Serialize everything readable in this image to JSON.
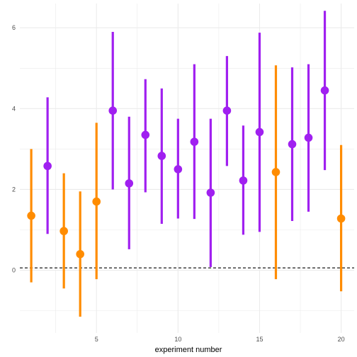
{
  "chart_data": {
    "type": "scatter",
    "subtype": "pointrange",
    "title": "",
    "xlabel": "experiment number",
    "ylabel": "",
    "xlim": [
      0.3,
      20.8
    ],
    "ylim": [
      -1.55,
      6.6
    ],
    "x_ticks": [
      5,
      10,
      15,
      20
    ],
    "y_ticks": [
      0,
      2,
      4,
      6
    ],
    "grid": true,
    "reference_line": {
      "y": 0.06,
      "style": "dashed",
      "color": "#000000"
    },
    "colors": {
      "orange": "#FF8C00",
      "purple": "#A020F0",
      "grid": "#EBEBEB"
    },
    "points": [
      {
        "x": 1,
        "y": 1.35,
        "low": -0.3,
        "high": 3.0,
        "color": "orange"
      },
      {
        "x": 2,
        "y": 2.58,
        "low": 0.9,
        "high": 4.28,
        "color": "purple"
      },
      {
        "x": 3,
        "y": 0.97,
        "low": -0.45,
        "high": 2.4,
        "color": "orange"
      },
      {
        "x": 4,
        "y": 0.4,
        "low": -1.15,
        "high": 1.95,
        "color": "orange"
      },
      {
        "x": 5,
        "y": 1.7,
        "low": -0.22,
        "high": 3.65,
        "color": "orange"
      },
      {
        "x": 6,
        "y": 3.95,
        "low": 2.0,
        "high": 5.9,
        "color": "purple"
      },
      {
        "x": 7,
        "y": 2.15,
        "low": 0.52,
        "high": 3.8,
        "color": "purple"
      },
      {
        "x": 8,
        "y": 3.35,
        "low": 1.93,
        "high": 4.73,
        "color": "purple"
      },
      {
        "x": 9,
        "y": 2.83,
        "low": 1.15,
        "high": 4.5,
        "color": "purple"
      },
      {
        "x": 10,
        "y": 2.5,
        "low": 1.28,
        "high": 3.75,
        "color": "purple"
      },
      {
        "x": 11,
        "y": 3.18,
        "low": 1.27,
        "high": 5.1,
        "color": "purple"
      },
      {
        "x": 12,
        "y": 1.92,
        "low": 0.08,
        "high": 3.75,
        "color": "purple"
      },
      {
        "x": 13,
        "y": 3.95,
        "low": 2.58,
        "high": 5.3,
        "color": "purple"
      },
      {
        "x": 14,
        "y": 2.22,
        "low": 0.88,
        "high": 3.58,
        "color": "purple"
      },
      {
        "x": 15,
        "y": 3.42,
        "low": 0.95,
        "high": 5.88,
        "color": "purple"
      },
      {
        "x": 16,
        "y": 2.43,
        "low": -0.22,
        "high": 5.07,
        "color": "orange"
      },
      {
        "x": 17,
        "y": 3.12,
        "low": 1.22,
        "high": 5.02,
        "color": "purple"
      },
      {
        "x": 18,
        "y": 3.28,
        "low": 1.45,
        "high": 5.1,
        "color": "purple"
      },
      {
        "x": 19,
        "y": 4.45,
        "low": 2.48,
        "high": 6.42,
        "color": "purple"
      },
      {
        "x": 20,
        "y": 1.28,
        "low": -0.52,
        "high": 3.1,
        "color": "orange"
      }
    ]
  }
}
